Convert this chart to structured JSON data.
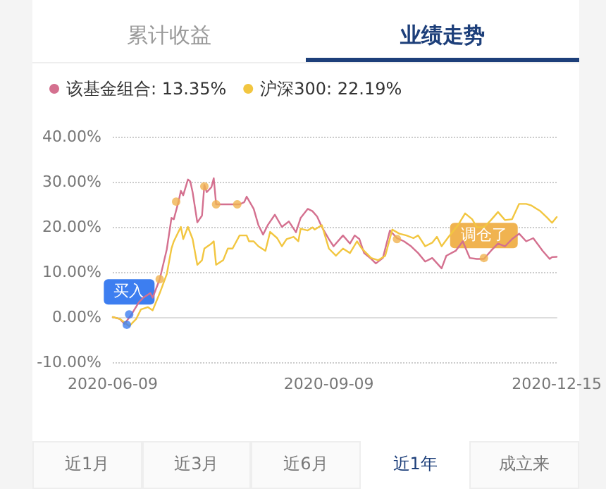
{
  "chart_data": {
    "type": "line",
    "annotations": [
      "累计收益",
      "业绩走势",
      "近1月",
      "近3月",
      "近6月",
      "近1年",
      "成立来",
      {
        "text": "买入",
        "x": "2020-06-16",
        "y": 0.6
      },
      {
        "text": "调仓了",
        "x": "2020-11-14",
        "y": 13.1
      }
    ],
    "series": [
      {
        "name": "该基金组合: 13.35%",
        "color": "#d4708f",
        "x": [
          "2020-06-09",
          "2020-06-12",
          "2020-06-14",
          "2020-06-17",
          "2020-06-20",
          "2020-06-22",
          "2020-06-25",
          "2020-06-26",
          "2020-06-29",
          "2020-07-02",
          "2020-07-04",
          "2020-07-05",
          "2020-07-07",
          "2020-07-08",
          "2020-07-09",
          "2020-07-11",
          "2020-07-12",
          "2020-07-13",
          "2020-07-15",
          "2020-07-17",
          "2020-07-18",
          "2020-07-19",
          "2020-07-21",
          "2020-07-22",
          "2020-07-23",
          "2020-08-02",
          "2020-08-04",
          "2020-08-05",
          "2020-08-08",
          "2020-08-10",
          "2020-08-12",
          "2020-08-14",
          "2020-08-17",
          "2020-08-20",
          "2020-08-23",
          "2020-08-26",
          "2020-08-28",
          "2020-08-31",
          "2020-09-02",
          "2020-09-04",
          "2020-09-06",
          "2020-09-09",
          "2020-09-11",
          "2020-09-15",
          "2020-09-18",
          "2020-09-20",
          "2020-09-22",
          "2020-09-24",
          "2020-09-27",
          "2020-09-29",
          "2020-10-02",
          "2020-10-05",
          "2020-10-08",
          "2020-10-11",
          "2020-10-14",
          "2020-10-17",
          "2020-10-20",
          "2020-10-23",
          "2020-10-27",
          "2020-10-29",
          "2020-11-02",
          "2020-11-05",
          "2020-11-08",
          "2020-11-11",
          "2020-11-14",
          "2020-11-17",
          "2020-11-20",
          "2020-11-23",
          "2020-11-26",
          "2020-11-29",
          "2020-12-02",
          "2020-12-05",
          "2020-12-09",
          "2020-12-12",
          "2020-12-13",
          "2020-12-15"
        ],
        "values": [
          0,
          -0.4,
          -1.5,
          0.6,
          3.2,
          4.3,
          5.3,
          4.3,
          8.4,
          15,
          22,
          21.7,
          25.6,
          28,
          27,
          30.5,
          30.1,
          27.7,
          21,
          22.5,
          29.3,
          27.7,
          28.8,
          30.8,
          25,
          25,
          25.5,
          26.7,
          24,
          20.4,
          18.3,
          20.4,
          22.7,
          20,
          21.2,
          18.8,
          22,
          24,
          23.5,
          22.3,
          20,
          17.3,
          15.7,
          18.1,
          16.3,
          18.1,
          17.3,
          14.2,
          12.9,
          11.9,
          13.1,
          19.2,
          17.5,
          16.8,
          15.7,
          14.2,
          12.3,
          13.1,
          10.8,
          13.6,
          14.7,
          16.8,
          13.1,
          12.9,
          12.9,
          14.7,
          16.3,
          15.7,
          17.3,
          18.5,
          16.8,
          17.5,
          14.7,
          12.9,
          13.3,
          13.35
        ]
      },
      {
        "name": "沪深300: 22.19%",
        "color": "#f2c640",
        "x": [
          "2020-06-09",
          "2020-06-12",
          "2020-06-16",
          "2020-06-19",
          "2020-06-21",
          "2020-06-24",
          "2020-06-26",
          "2020-06-29",
          "2020-07-02",
          "2020-07-04",
          "2020-07-05",
          "2020-07-08",
          "2020-07-09",
          "2020-07-11",
          "2020-07-13",
          "2020-07-15",
          "2020-07-17",
          "2020-07-18",
          "2020-07-21",
          "2020-07-22",
          "2020-07-23",
          "2020-07-26",
          "2020-07-28",
          "2020-07-30",
          "2020-08-02",
          "2020-08-05",
          "2020-08-06",
          "2020-08-08",
          "2020-08-10",
          "2020-08-13",
          "2020-08-15",
          "2020-08-18",
          "2020-08-20",
          "2020-08-22",
          "2020-08-25",
          "2020-08-27",
          "2020-08-28",
          "2020-08-31",
          "2020-09-02",
          "2020-09-03",
          "2020-09-06",
          "2020-09-09",
          "2020-09-12",
          "2020-09-15",
          "2020-09-18",
          "2020-09-21",
          "2020-09-23",
          "2020-09-27",
          "2020-09-30",
          "2020-10-03",
          "2020-10-06",
          "2020-10-09",
          "2020-10-12",
          "2020-10-15",
          "2020-10-17",
          "2020-10-20",
          "2020-10-23",
          "2020-10-25",
          "2020-10-27",
          "2020-10-30",
          "2020-11-03",
          "2020-11-06",
          "2020-11-09",
          "2020-11-11",
          "2020-11-14",
          "2020-11-17",
          "2020-11-20",
          "2020-11-23",
          "2020-11-26",
          "2020-11-29",
          "2020-12-02",
          "2020-12-04",
          "2020-12-08",
          "2020-12-11",
          "2020-12-13",
          "2020-12-15"
        ],
        "values": [
          0,
          -0.4,
          -2,
          -0.4,
          1.7,
          2.2,
          1.5,
          5.3,
          9.5,
          15.2,
          16.8,
          20,
          17.3,
          20,
          17.3,
          11.6,
          12.6,
          15.2,
          16.3,
          16.8,
          11.6,
          12.6,
          15.2,
          15.2,
          18.1,
          18.1,
          16.8,
          16.8,
          15.7,
          14.7,
          18.9,
          17.5,
          15.7,
          17.3,
          17.8,
          16.8,
          19.6,
          19.2,
          19.9,
          19.4,
          20.4,
          15.2,
          13.6,
          15.2,
          14.2,
          16.8,
          15.2,
          13.1,
          12.6,
          13.6,
          19.4,
          18.5,
          18.1,
          17.5,
          18.1,
          15.7,
          16.5,
          17.8,
          15.7,
          17.8,
          20.4,
          23,
          21.7,
          19.9,
          19.9,
          21.5,
          23.3,
          21.5,
          21.7,
          25.1,
          25.1,
          24.8,
          23.5,
          22,
          20.9,
          22.19
        ]
      },
      {
        "type": "scatter",
        "marker": "circle",
        "color": "#3d7ef0",
        "x": [
          "2020-06-15",
          "2020-06-16"
        ],
        "values": [
          -1.7,
          0.6
        ]
      },
      {
        "type": "scatter",
        "marker": "circle",
        "color": "#f0b350",
        "x": [
          "2020-06-29",
          "2020-07-06",
          "2020-07-18",
          "2020-07-23",
          "2020-08-01",
          "2020-10-08",
          "2020-11-14"
        ],
        "values": [
          8.4,
          25.6,
          29,
          25,
          25,
          17.3,
          13.1
        ]
      }
    ],
    "xlim": [
      "2020-06-09",
      "2020-12-15"
    ],
    "xticks": [
      "2020-06-09",
      "2020-09-09",
      "2020-12-15"
    ],
    "ylim": [
      -10,
      40
    ],
    "yticks": [
      {
        "value": -10,
        "label": "-10.00%"
      },
      {
        "value": 0,
        "label": "0.00%"
      },
      {
        "value": 10,
        "label": "10.00%"
      },
      {
        "value": 20,
        "label": "20.00%"
      },
      {
        "value": 30,
        "label": "30.00%"
      },
      {
        "value": 40,
        "label": "40.00%"
      }
    ],
    "grid": "y",
    "legend": "top left",
    "marker": "none",
    "line_style": "solid"
  }
}
